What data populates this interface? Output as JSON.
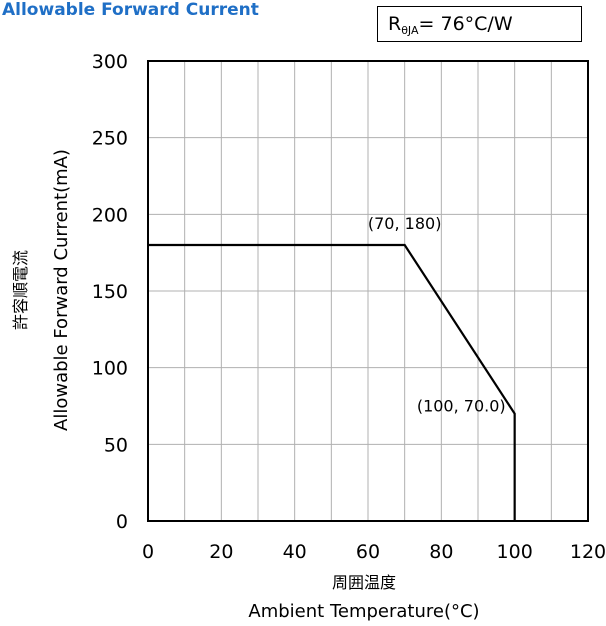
{
  "title": "Allowable Forward Current",
  "thermal_resistance": {
    "symbol": "R",
    "subscript": "θJA",
    "value": "= 76°C/W"
  },
  "chart_data": {
    "type": "line",
    "title": "Allowable Forward Current",
    "xlabel_jp": "周囲温度",
    "xlabel": "Ambient Temperature(°C)",
    "ylabel_jp": "許容順電流",
    "ylabel": "Allowable Forward Current(mA)",
    "xlim": [
      0,
      120
    ],
    "ylim": [
      0,
      300
    ],
    "x_major_ticks": [
      0,
      20,
      40,
      60,
      80,
      100,
      120
    ],
    "x_minor_ticks": [
      10,
      30,
      50,
      70,
      90,
      110
    ],
    "y_ticks": [
      0,
      50,
      100,
      150,
      200,
      250,
      300
    ],
    "grid": true,
    "series": [
      {
        "x": [
          0,
          70,
          100,
          100
        ],
        "y": [
          180,
          180,
          70,
          0
        ]
      }
    ],
    "annotations": [
      {
        "text": "(70, 180)",
        "x": 70,
        "y": 180
      },
      {
        "text": "(100, 70.0)",
        "x": 100,
        "y": 70
      }
    ]
  }
}
